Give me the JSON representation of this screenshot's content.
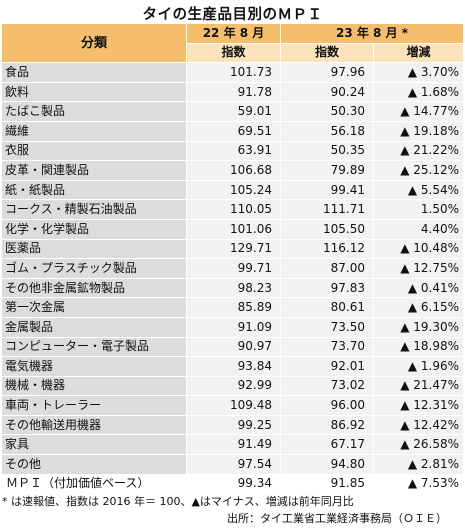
{
  "title": "タイの生産品目別のＭＰＩ",
  "header": {
    "category": "分類",
    "period1": "22 年 8 月",
    "period2": "23 年 8 月 *",
    "index_label": "指数",
    "change_label": "増減"
  },
  "rows": [
    {
      "name": "食品",
      "v22": "101.73",
      "v23": "97.96",
      "chg": "▲ 3.70%"
    },
    {
      "name": "飲料",
      "v22": "91.78",
      "v23": "90.24",
      "chg": "▲ 1.68%"
    },
    {
      "name": "たばこ製品",
      "v22": "59.01",
      "v23": "50.30",
      "chg": "▲ 14.77%"
    },
    {
      "name": "繊維",
      "v22": "69.51",
      "v23": "56.18",
      "chg": "▲ 19.18%"
    },
    {
      "name": "衣服",
      "v22": "63.91",
      "v23": "50.35",
      "chg": "▲ 21.22%"
    },
    {
      "name": "皮革・関連製品",
      "v22": "106.68",
      "v23": "79.89",
      "chg": "▲ 25.12%"
    },
    {
      "name": "紙・紙製品",
      "v22": "105.24",
      "v23": "99.41",
      "chg": "▲ 5.54%"
    },
    {
      "name": "コークス・精製石油製品",
      "v22": "110.05",
      "v23": "111.71",
      "chg": "1.50%"
    },
    {
      "name": "化学・化学製品",
      "v22": "101.06",
      "v23": "105.50",
      "chg": "4.40%"
    },
    {
      "name": "医薬品",
      "v22": "129.71",
      "v23": "116.12",
      "chg": "▲ 10.48%"
    },
    {
      "name": "ゴム・プラスチック製品",
      "v22": "99.71",
      "v23": "87.00",
      "chg": "▲ 12.75%"
    },
    {
      "name": "その他非金属鉱物製品",
      "v22": "98.23",
      "v23": "97.83",
      "chg": "▲ 0.41%"
    },
    {
      "name": "第一次金属",
      "v22": "85.89",
      "v23": "80.61",
      "chg": "▲ 6.15%"
    },
    {
      "name": "金属製品",
      "v22": "91.09",
      "v23": "73.50",
      "chg": "▲ 19.30%"
    },
    {
      "name": "コンピューター・電子製品",
      "v22": "90.97",
      "v23": "73.70",
      "chg": "▲ 18.98%"
    },
    {
      "name": "電気機器",
      "v22": "93.84",
      "v23": "92.01",
      "chg": "▲ 1.96%"
    },
    {
      "name": "機械・機器",
      "v22": "92.99",
      "v23": "73.02",
      "chg": "▲ 21.47%"
    },
    {
      "name": "車両・トレーラー",
      "v22": "109.48",
      "v23": "96.00",
      "chg": "▲ 12.31%"
    },
    {
      "name": "その他輸送用機器",
      "v22": "99.25",
      "v23": "86.92",
      "chg": "▲ 12.42%"
    },
    {
      "name": "家具",
      "v22": "91.49",
      "v23": "67.17",
      "chg": "▲ 26.58%"
    },
    {
      "name": "その他",
      "v22": "97.54",
      "v23": "94.80",
      "chg": "▲ 2.81%"
    }
  ],
  "total": {
    "name": "ＭＰＩ（付加価値ベース）",
    "v22": "99.34",
    "v23": "91.85",
    "chg": "▲ 7.53%"
  },
  "footnote": "* は速報値、指数は 2016 年＝ 100、▲はマイナス、増減は前年同月比",
  "source": "出所：タイ工業省工業経済事務局（ＯＩＥ）"
}
